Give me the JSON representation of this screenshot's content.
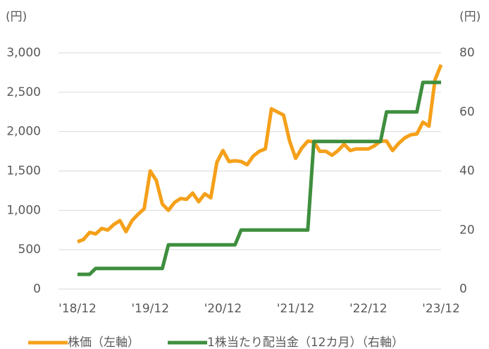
{
  "chart_data": {
    "type": "line",
    "y_unit": "(円)",
    "y2_unit": "(円)",
    "categories": [
      "'18/12",
      null,
      null,
      null,
      null,
      null,
      null,
      null,
      null,
      null,
      null,
      null,
      "'19/12",
      null,
      null,
      null,
      null,
      null,
      null,
      null,
      null,
      null,
      null,
      null,
      "'20/12",
      null,
      null,
      null,
      null,
      null,
      null,
      null,
      null,
      null,
      null,
      null,
      "'21/12",
      null,
      null,
      null,
      null,
      null,
      null,
      null,
      null,
      null,
      null,
      null,
      "'22/12",
      null,
      null,
      null,
      null,
      null,
      null,
      null,
      null,
      null,
      null,
      null,
      "'23/12"
    ],
    "series": [
      {
        "name": "株価（左軸）",
        "color": "#f5a01a",
        "axis": "y",
        "values": [
          600,
          630,
          720,
          700,
          770,
          750,
          820,
          870,
          730,
          870,
          950,
          1020,
          1500,
          1380,
          1080,
          1000,
          1100,
          1150,
          1140,
          1220,
          1110,
          1210,
          1160,
          1610,
          1760,
          1620,
          1630,
          1620,
          1580,
          1690,
          1750,
          1780,
          2290,
          2250,
          2210,
          1880,
          1660,
          1790,
          1880,
          1870,
          1750,
          1750,
          1700,
          1760,
          1840,
          1760,
          1780,
          1780,
          1780,
          1820,
          1880,
          1880,
          1760,
          1850,
          1920,
          1960,
          1970,
          2120,
          2070,
          2660,
          2850
        ]
      },
      {
        "name": "1株当たり配当金（12カ月）（右軸）",
        "color": "#3e8e3e",
        "axis": "y2",
        "values": [
          5,
          5,
          5,
          7,
          7,
          7,
          7,
          7,
          7,
          7,
          7,
          7,
          7,
          7,
          7,
          15,
          15,
          15,
          15,
          15,
          15,
          15,
          15,
          15,
          15,
          15,
          15,
          20,
          20,
          20,
          20,
          20,
          20,
          20,
          20,
          20,
          20,
          20,
          20,
          50,
          50,
          50,
          50,
          50,
          50,
          50,
          50,
          50,
          50,
          50,
          50,
          60,
          60,
          60,
          60,
          60,
          60,
          70,
          70,
          70,
          70
        ]
      }
    ],
    "ylim": [
      0,
      3000
    ],
    "yticks": [
      0,
      500,
      {
        "value": 1000,
        "label": "1,000"
      },
      {
        "value": 1500,
        "label": "1,500"
      },
      {
        "value": 2000,
        "label": "2,000"
      },
      {
        "value": 2500,
        "label": "2,500"
      },
      {
        "value": 3000,
        "label": "3,000"
      }
    ],
    "y2lim": [
      0,
      80
    ],
    "y2ticks": [
      0,
      20,
      40,
      60,
      80
    ],
    "grid": true
  }
}
